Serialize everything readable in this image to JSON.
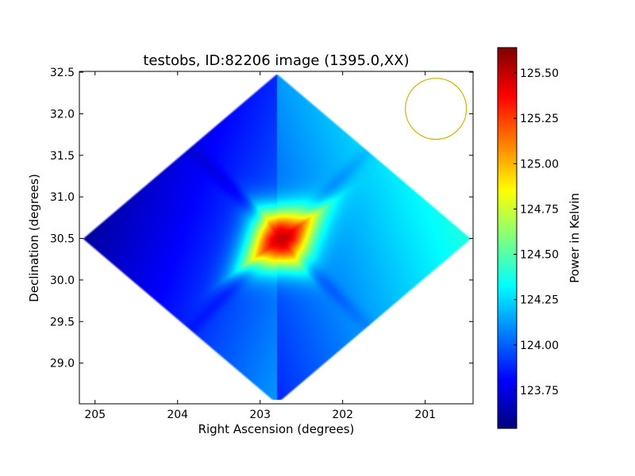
{
  "chart_data": {
    "type": "heatmap",
    "title": "testobs, ID:82206 image (1395.0,XX)",
    "xlabel": "Right Ascension (degrees)",
    "ylabel": "Declination (degrees)",
    "xlim": [
      205.19,
      200.42
    ],
    "ylim": [
      28.51,
      32.51
    ],
    "xticks": [
      "205",
      "204",
      "203",
      "202",
      "201"
    ],
    "xtick_values": [
      205,
      204,
      203,
      202,
      201
    ],
    "yticks": [
      "32.5",
      "32.0",
      "31.5",
      "31.0",
      "30.5",
      "30.0",
      "29.5",
      "29.0"
    ],
    "ytick_values": [
      32.5,
      32.0,
      31.5,
      31.0,
      30.5,
      30.0,
      29.5,
      29.0
    ],
    "colorbar": {
      "label": "Power in Kelvin",
      "colormap": "jet",
      "range": [
        123.54,
        125.64
      ],
      "ticks": [
        "125.50",
        "125.25",
        "125.00",
        "124.75",
        "124.50",
        "124.25",
        "124.00",
        "123.75"
      ],
      "tick_values": [
        125.5,
        125.25,
        125.0,
        124.75,
        124.5,
        124.25,
        124.0,
        123.75
      ]
    },
    "field": {
      "center_ra": 202.8,
      "center_dec": 30.5,
      "half_width_ra": 2.37,
      "half_width_dec": 2.0,
      "peak": {
        "ra": 202.75,
        "dec": 30.5,
        "value": 125.6
      },
      "west_edge_value": 123.6,
      "east_edge_value": 124.4,
      "background_value": 124.0
    },
    "beam_circle": {
      "ra": 200.87,
      "dec": 32.06,
      "radius_deg": 0.37,
      "color": "#c8b400"
    },
    "grid": false
  }
}
